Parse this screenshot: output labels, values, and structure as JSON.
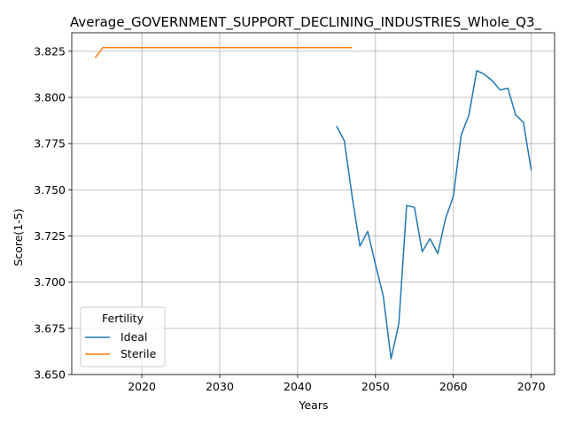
{
  "chart_data": {
    "type": "line",
    "title": "Average_GOVERNMENT_SUPPORT_DECLINING_INDUSTRIES_Whole_Q3_",
    "xlabel": "Years",
    "ylabel": "Score(1-5)",
    "xlim": [
      2011,
      2073
    ],
    "ylim": [
      3.65,
      3.835
    ],
    "xticks": [
      2020,
      2030,
      2040,
      2050,
      2060,
      2070
    ],
    "yticks": [
      3.65,
      3.675,
      3.7,
      3.725,
      3.75,
      3.775,
      3.8,
      3.825
    ],
    "xtick_labels": [
      "2020",
      "2030",
      "2040",
      "2050",
      "2060",
      "2070"
    ],
    "ytick_labels": [
      "3.650",
      "3.675",
      "3.700",
      "3.725",
      "3.750",
      "3.775",
      "3.800",
      "3.825"
    ],
    "grid": true,
    "legend": {
      "title": "Fertility",
      "position": "lower-left"
    },
    "series": [
      {
        "name": "Ideal",
        "color": "#1f77b4",
        "x": [
          2045,
          2046,
          2047,
          2048,
          2049,
          2050,
          2051,
          2052,
          2053,
          2054,
          2055,
          2056,
          2057,
          2058,
          2059,
          2060,
          2061,
          2062,
          2063,
          2064,
          2065,
          2066,
          2067,
          2068,
          2069,
          2070
        ],
        "y": [
          3.7845,
          3.7765,
          3.7465,
          3.7195,
          3.7275,
          3.7095,
          3.6925,
          3.6585,
          3.6775,
          3.7415,
          3.7405,
          3.7165,
          3.7235,
          3.7155,
          3.7345,
          3.7465,
          3.7795,
          3.7905,
          3.8145,
          3.8125,
          3.809,
          3.804,
          3.805,
          3.7905,
          3.7865,
          3.7605
        ]
      },
      {
        "name": "Sterile",
        "color": "#ff7f0e",
        "x": [
          2014,
          2015,
          2016,
          2017,
          2018,
          2019,
          2020,
          2021,
          2022,
          2023,
          2024,
          2025,
          2026,
          2027,
          2028,
          2029,
          2030,
          2031,
          2032,
          2033,
          2034,
          2035,
          2036,
          2037,
          2038,
          2039,
          2040,
          2041,
          2042,
          2043,
          2044,
          2045,
          2046,
          2047
        ],
        "y": [
          3.8215,
          3.827,
          3.827,
          3.827,
          3.827,
          3.827,
          3.827,
          3.827,
          3.827,
          3.827,
          3.827,
          3.827,
          3.827,
          3.827,
          3.827,
          3.827,
          3.827,
          3.827,
          3.827,
          3.827,
          3.827,
          3.827,
          3.827,
          3.827,
          3.827,
          3.827,
          3.827,
          3.827,
          3.827,
          3.827,
          3.827,
          3.827,
          3.827,
          3.827
        ]
      }
    ]
  }
}
